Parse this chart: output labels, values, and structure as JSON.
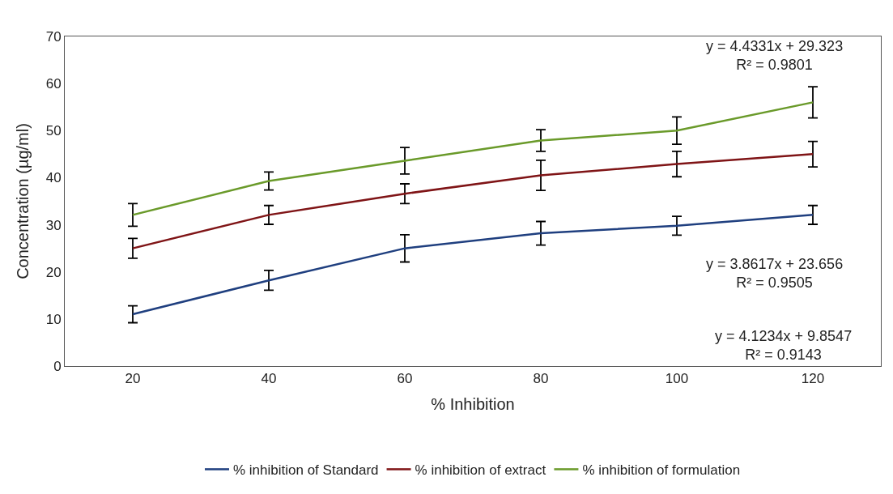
{
  "chart_data": {
    "type": "line",
    "xlabel": "% Inhibition",
    "ylabel": "Concentration (µg/ml)",
    "categories": [
      "20",
      "40",
      "60",
      "80",
      "100",
      "120"
    ],
    "series": [
      {
        "name": "% inhibition of Standard",
        "color": "#1f3f7f",
        "values": [
          11,
          18.2,
          25,
          28.2,
          29.8,
          32.1
        ],
        "errors": [
          1.8,
          2.1,
          2.9,
          2.5,
          2,
          2
        ]
      },
      {
        "name": "% inhibition of extract",
        "color": "#7f1416",
        "values": [
          25,
          32.1,
          36.6,
          40.5,
          42.9,
          45
        ],
        "errors": [
          2.1,
          2,
          2.1,
          3.2,
          2.7,
          2.7
        ]
      },
      {
        "name": "% inhibition of formulation",
        "color": "#6a9a2a",
        "values": [
          32.1,
          39.3,
          43.6,
          47.9,
          50,
          56
        ],
        "errors": [
          2.4,
          1.9,
          2.8,
          2.3,
          2.9,
          3.3
        ]
      }
    ],
    "ylim": [
      0,
      70
    ],
    "yticks": [
      0,
      10,
      20,
      30,
      40,
      50,
      60,
      70
    ],
    "legend": "bottom",
    "marker": "none",
    "line_style": "solid",
    "annotations": [
      "y = 4.4331x + 29.323\nR² = 0.9801",
      "y = 3.8617x + 23.656\nR² = 0.9505",
      "y = 4.1234x + 9.8547\nR² = 0.9143"
    ]
  }
}
